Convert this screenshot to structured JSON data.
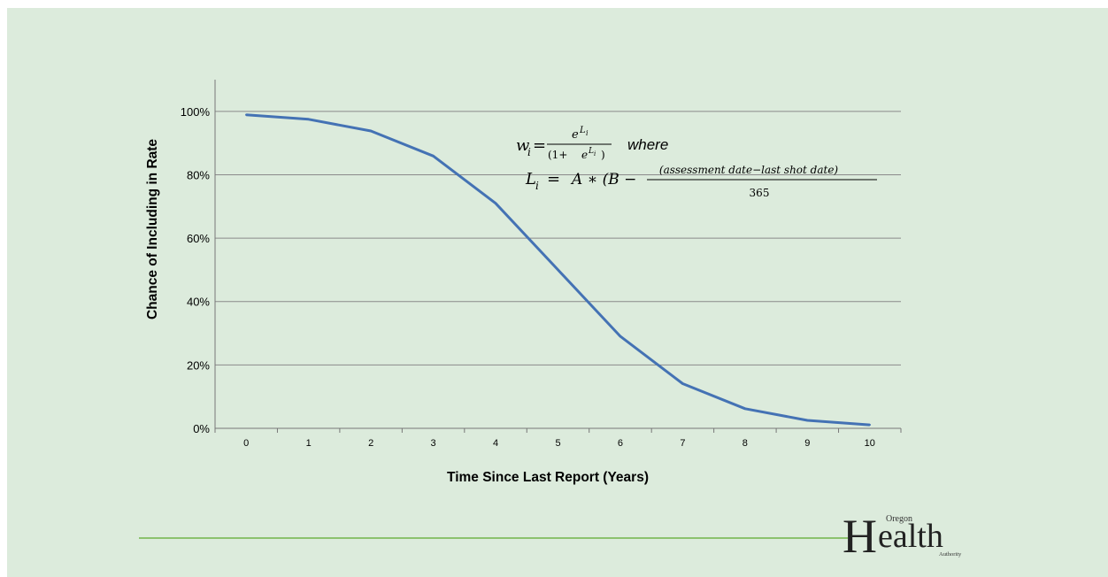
{
  "chart_data": {
    "type": "line",
    "x": [
      0,
      1,
      2,
      3,
      4,
      5,
      6,
      7,
      8,
      9,
      10
    ],
    "series": [
      {
        "values": [
          98.9,
          97.5,
          93.8,
          85.9,
          71.0,
          50.0,
          29.0,
          14.1,
          6.2,
          2.5,
          1.1
        ]
      }
    ],
    "categories": [
      "0",
      "1",
      "2",
      "3",
      "4",
      "5",
      "6",
      "7",
      "8",
      "9",
      "10"
    ],
    "yticks": [
      "0%",
      "20%",
      "40%",
      "60%",
      "80%",
      "100%"
    ],
    "ylim": [
      0,
      110
    ],
    "xlabel": "Time Since Last Report (Years)",
    "ylabel": "Chance of Including in Rate",
    "grid": true,
    "line_color": "#4472b4"
  },
  "formula": {
    "w_lhs": "w",
    "w_sub": "i",
    "w_eq": "=",
    "w_num_base": "e",
    "w_num_sup": "L",
    "w_num_sup_sub": "i",
    "w_den_open": "(1+",
    "w_den_base": "e",
    "w_den_sup": "L",
    "w_den_sup_sub": "i",
    "w_den_close": ")",
    "where": "where",
    "l_lhs": "L",
    "l_sub": "i",
    "l_eq": "=",
    "l_rhs": "A ∗ (B −",
    "l_num": "(assessment date−last shot date)",
    "l_den": "365"
  },
  "logo": {
    "big_h": "H",
    "word_tail": "ealth",
    "top": "Oregon",
    "bottom": "Authority"
  },
  "colors": {
    "background": "#dcebdc",
    "divider": "#8cc26e",
    "line": "#4472b4"
  }
}
